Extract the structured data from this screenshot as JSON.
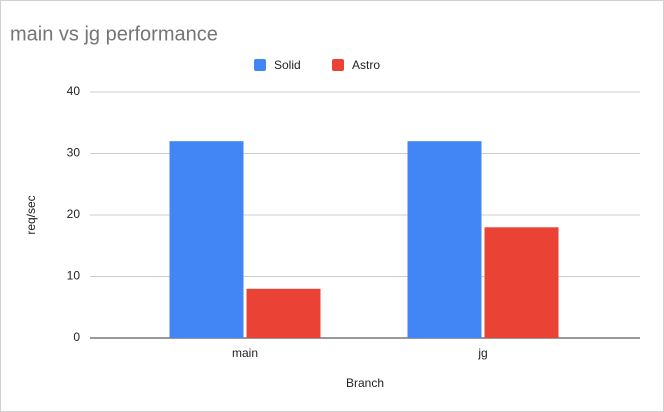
{
  "chart_data": {
    "type": "bar",
    "title": "main vs jg performance",
    "categories": [
      "main",
      "jg"
    ],
    "series": [
      {
        "name": "Solid",
        "color": "#4285f4",
        "values": [
          32,
          32
        ]
      },
      {
        "name": "Astro",
        "color": "#ea4335",
        "values": [
          8,
          18
        ]
      }
    ],
    "x_label": "Branch",
    "y_label": "req/sec",
    "ylim": [
      0,
      40
    ],
    "yticks": [
      0,
      10,
      20,
      30,
      40
    ],
    "grid": true,
    "legend": "top"
  }
}
